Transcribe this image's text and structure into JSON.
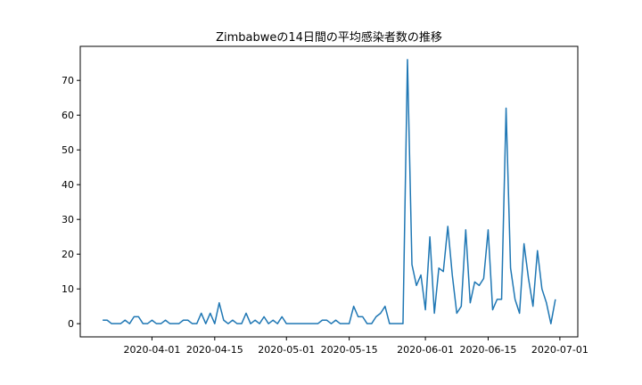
{
  "chart_data": {
    "type": "line",
    "title": "Zimbabweの14日間の平均感染者数の推移",
    "xlabel": "",
    "ylabel": "",
    "x_start": "2020-03-21",
    "x_end": "2020-06-30",
    "xlim": [
      "2020-03-16",
      "2020-07-05"
    ],
    "ylim": [
      -3.8,
      79.8
    ],
    "x_ticks": [
      "2020-04-01",
      "2020-04-15",
      "2020-05-01",
      "2020-05-15",
      "2020-06-01",
      "2020-06-15",
      "2020-07-01"
    ],
    "y_ticks": [
      0,
      10,
      20,
      30,
      40,
      50,
      60,
      70
    ],
    "grid": false,
    "line_color": "#1f77b4",
    "series": [
      {
        "values": [
          1,
          1,
          0,
          0,
          0,
          1,
          0,
          2,
          2,
          0,
          0,
          1,
          0,
          0,
          1,
          0,
          0,
          0,
          1,
          1,
          0,
          0,
          3,
          0,
          3,
          0,
          6,
          1,
          0,
          1,
          0,
          0,
          3,
          0,
          1,
          0,
          2,
          0,
          1,
          0,
          2,
          0,
          0,
          0,
          0,
          0,
          0,
          0,
          0,
          1,
          1,
          0,
          1,
          0,
          0,
          0,
          5,
          2,
          2,
          0,
          0,
          2,
          3,
          5,
          0,
          0,
          0,
          0,
          76,
          17,
          11,
          14,
          4,
          25,
          3,
          16,
          15,
          28,
          14,
          3,
          5,
          27,
          6,
          12,
          11,
          13,
          27,
          4,
          7,
          7,
          62,
          16,
          7,
          3,
          23,
          13,
          5,
          21,
          10,
          6,
          0,
          7
        ]
      }
    ]
  }
}
